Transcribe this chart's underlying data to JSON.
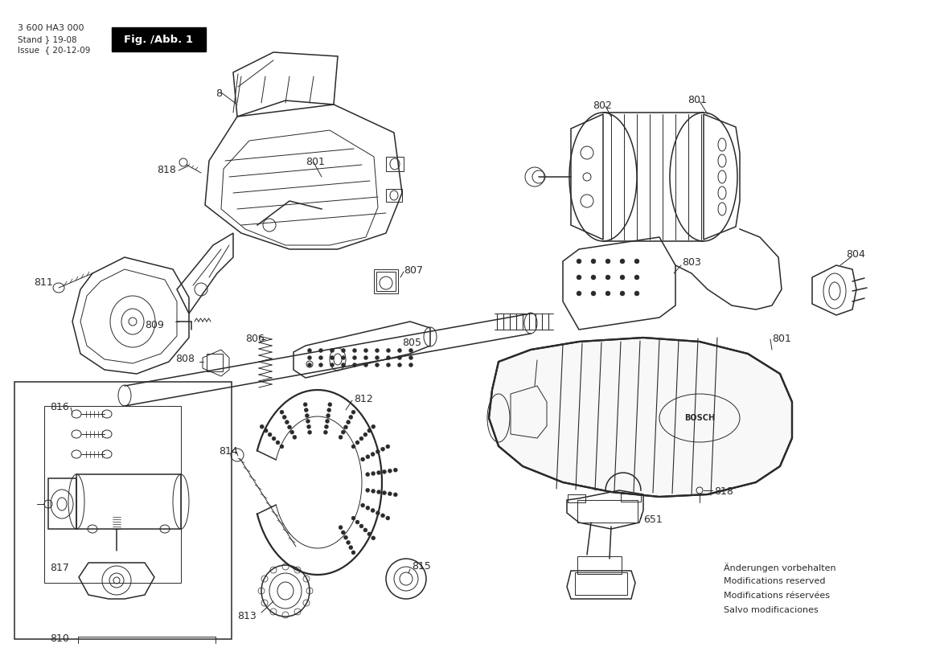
{
  "model": "3 600 HA3 000",
  "stand_text": "Stand ┘ 19-08",
  "issue_text": "Issue ┌ 20-12-09",
  "fig_label": "Fig. /Abb. 1",
  "bg_color": "#ffffff",
  "line_color": "#2a2a2a",
  "footer_lines": [
    "Änderungen vorbehalten",
    "Modifications reserved",
    "Modifications réservées",
    "Salvo modificaciones"
  ]
}
